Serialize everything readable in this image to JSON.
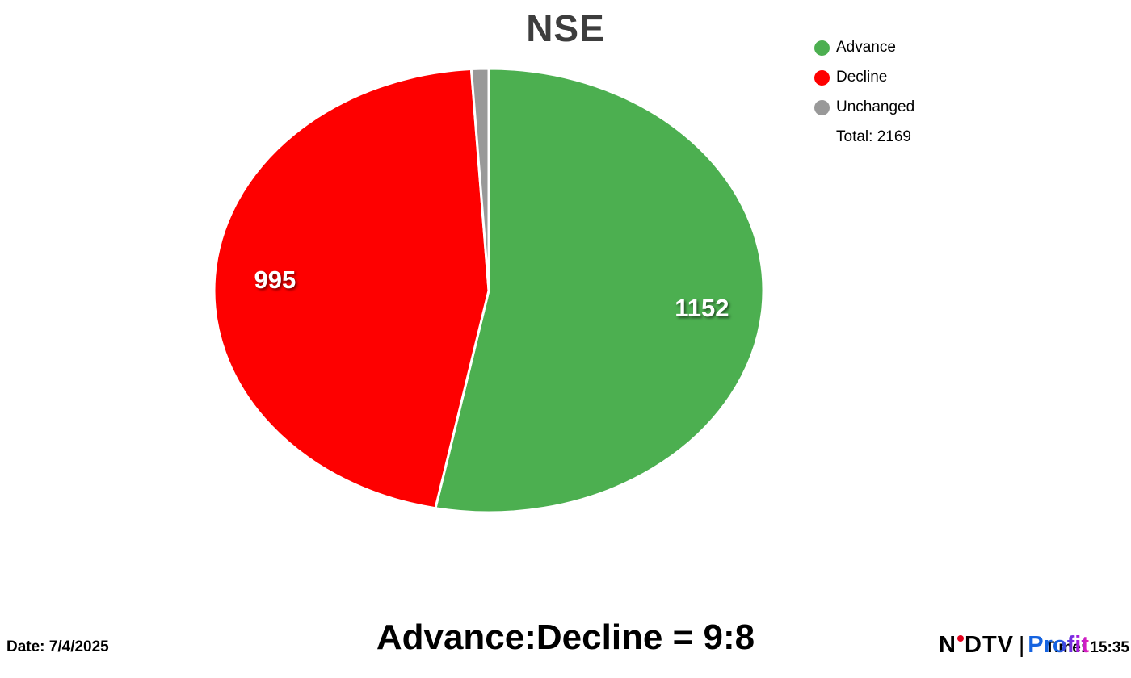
{
  "chart_data": {
    "type": "pie",
    "title": "NSE",
    "slices": [
      {
        "label": "Advance",
        "value": 1152,
        "color": "#4caf50"
      },
      {
        "label": "Decline",
        "value": 995,
        "color": "#fe0000"
      },
      {
        "label": "Unchanged",
        "value": 22,
        "color": "#999999"
      }
    ],
    "total": 2169,
    "total_label": "Total: 2169",
    "legend_position": "top-right",
    "start_angle": "top",
    "direction": "clockwise",
    "slice_value_labels": [
      "1152",
      "995"
    ]
  },
  "footer": {
    "ratio_label": "Advance:Decline = 9:8",
    "date_label": "Date: 7/4/2025",
    "time_label": "Time: 15:35"
  },
  "branding": {
    "ndtv_left": "N",
    "ndtv_right": "DTV",
    "separator": "|",
    "profit": "Profit"
  }
}
